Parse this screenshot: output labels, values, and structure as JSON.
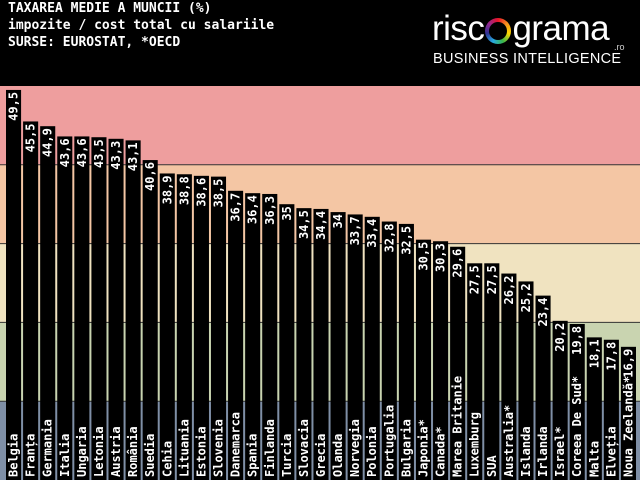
{
  "chart_data": {
    "type": "bar",
    "title": "TAXAREA MEDIE A MUNCII (%)",
    "subtitle": "impozite / cost total cu salariile",
    "sources": "SURSE: EUROSTAT, *OECD",
    "categories": [
      "Belgia",
      "Franța",
      "Germania",
      "Italia",
      "Ungaria",
      "Letonia",
      "Austria",
      "România",
      "Suedia",
      "Cehia",
      "Lituania",
      "Estonia",
      "Slovenia",
      "Danemarca",
      "Spania",
      "Finlanda",
      "Turcia",
      "Slovacia",
      "Grecia",
      "Olanda",
      "Norvegia",
      "Polonia",
      "Portugalia",
      "Bulgaria",
      "Japonia*",
      "Canada*",
      "Marea Britanie",
      "Luxemburg",
      "SUA",
      "Australia*",
      "Islanda",
      "Irlanda",
      "Israel*",
      "Coreea De Sud*",
      "Malta",
      "Elveția",
      "Noua Zeelandă*"
    ],
    "values": [
      49.5,
      45.5,
      44.9,
      43.6,
      43.6,
      43.5,
      43.3,
      43.1,
      40.6,
      38.9,
      38.8,
      38.6,
      38.5,
      36.7,
      36.4,
      36.3,
      35,
      34.5,
      34.4,
      34,
      33.7,
      33.4,
      32.8,
      32.5,
      30.5,
      30.3,
      29.6,
      27.5,
      27.5,
      26.2,
      25.2,
      23.4,
      20.2,
      19.8,
      18.1,
      17.8,
      16.9
    ],
    "value_labels": [
      "49,5",
      "45,5",
      "44,9",
      "43,6",
      "43,6",
      "43,5",
      "43,3",
      "43,1",
      "40,6",
      "38,9",
      "38,8",
      "38,6",
      "38,5",
      "36,7",
      "36,4",
      "36,3",
      "35",
      "34,5",
      "34,4",
      "34",
      "33,7",
      "33,4",
      "32,8",
      "32,5",
      "30,5",
      "30,3",
      "29,6",
      "27,5",
      "27,5",
      "26,2",
      "25,2",
      "23,4",
      "20,2",
      "19,8",
      "18,1",
      "17,8",
      "16,9"
    ],
    "ylim": [
      0,
      50
    ],
    "xlabel": "",
    "ylabel": "",
    "bands": [
      {
        "from": 0,
        "to": 10,
        "color": "#7f8fa6"
      },
      {
        "from": 10,
        "to": 20,
        "color": "#c9d4b0"
      },
      {
        "from": 20,
        "to": 30,
        "color": "#f0e3c0"
      },
      {
        "from": 30,
        "to": 40,
        "color": "#f4c6a4"
      },
      {
        "from": 40,
        "to": 50,
        "color": "#ee9e9e"
      }
    ],
    "grid": true,
    "legend": "none",
    "bar_color": "#000000",
    "label_color": "#ffffff"
  },
  "logo": {
    "word_start": "risc",
    "word_end": "grama",
    "domain": ".ro",
    "tagline": "BUSINESS INTELLIGENCE"
  }
}
